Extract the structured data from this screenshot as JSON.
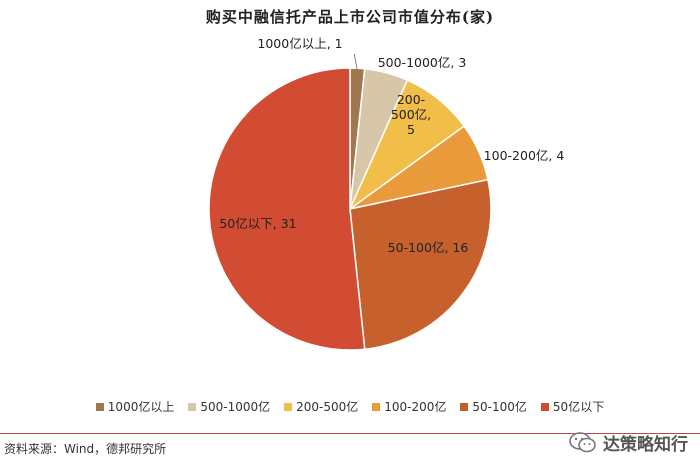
{
  "title": "购买中融信托产品上市公司市值分布(家)",
  "source": "资料来源：Wind，德邦研究所",
  "watermark": "达策略知行",
  "colors": {
    "c1000": "#A0784F",
    "c500": "#D7C6A7",
    "c200": "#F1BE4A",
    "c100": "#E99A3A",
    "c50": "#C6612E",
    "clt50": "#D24C34",
    "rule": "#B5484A"
  },
  "chart_data": {
    "type": "pie",
    "title": "购买中融信托产品上市公司市值分布(家)",
    "legend_position": "bottom",
    "slices": [
      {
        "category": "1000亿以上",
        "value": 1,
        "label": "1000亿以上, 1"
      },
      {
        "category": "500-1000亿",
        "value": 3,
        "label": "500-1000亿, 3"
      },
      {
        "category": "200-500亿",
        "value": 5,
        "label": "200-500亿, 5"
      },
      {
        "category": "100-200亿",
        "value": 4,
        "label": "100-200亿, 4"
      },
      {
        "category": "50-100亿",
        "value": 16,
        "label": "50-100亿, 16"
      },
      {
        "category": "50亿以下",
        "value": 31,
        "label": "50亿以下, 31"
      }
    ]
  },
  "legend": [
    {
      "label": "1000亿以上",
      "color": "#A0784F"
    },
    {
      "label": "500-1000亿",
      "color": "#D7C6A7"
    },
    {
      "label": "200-500亿",
      "color": "#F1BE4A"
    },
    {
      "label": "100-200亿",
      "color": "#E99A3A"
    },
    {
      "label": "50-100亿",
      "color": "#C6612E"
    },
    {
      "label": "50亿以下",
      "color": "#D24C34"
    }
  ],
  "slice_label_lines": [
    [
      "1000亿以上, 1"
    ],
    [
      "500-1000亿, 3"
    ],
    [
      "200-",
      "500亿,",
      "5"
    ],
    [
      "100-200亿, 4"
    ],
    [
      "50-100亿, 16"
    ],
    [
      "50亿以下, 31"
    ]
  ]
}
